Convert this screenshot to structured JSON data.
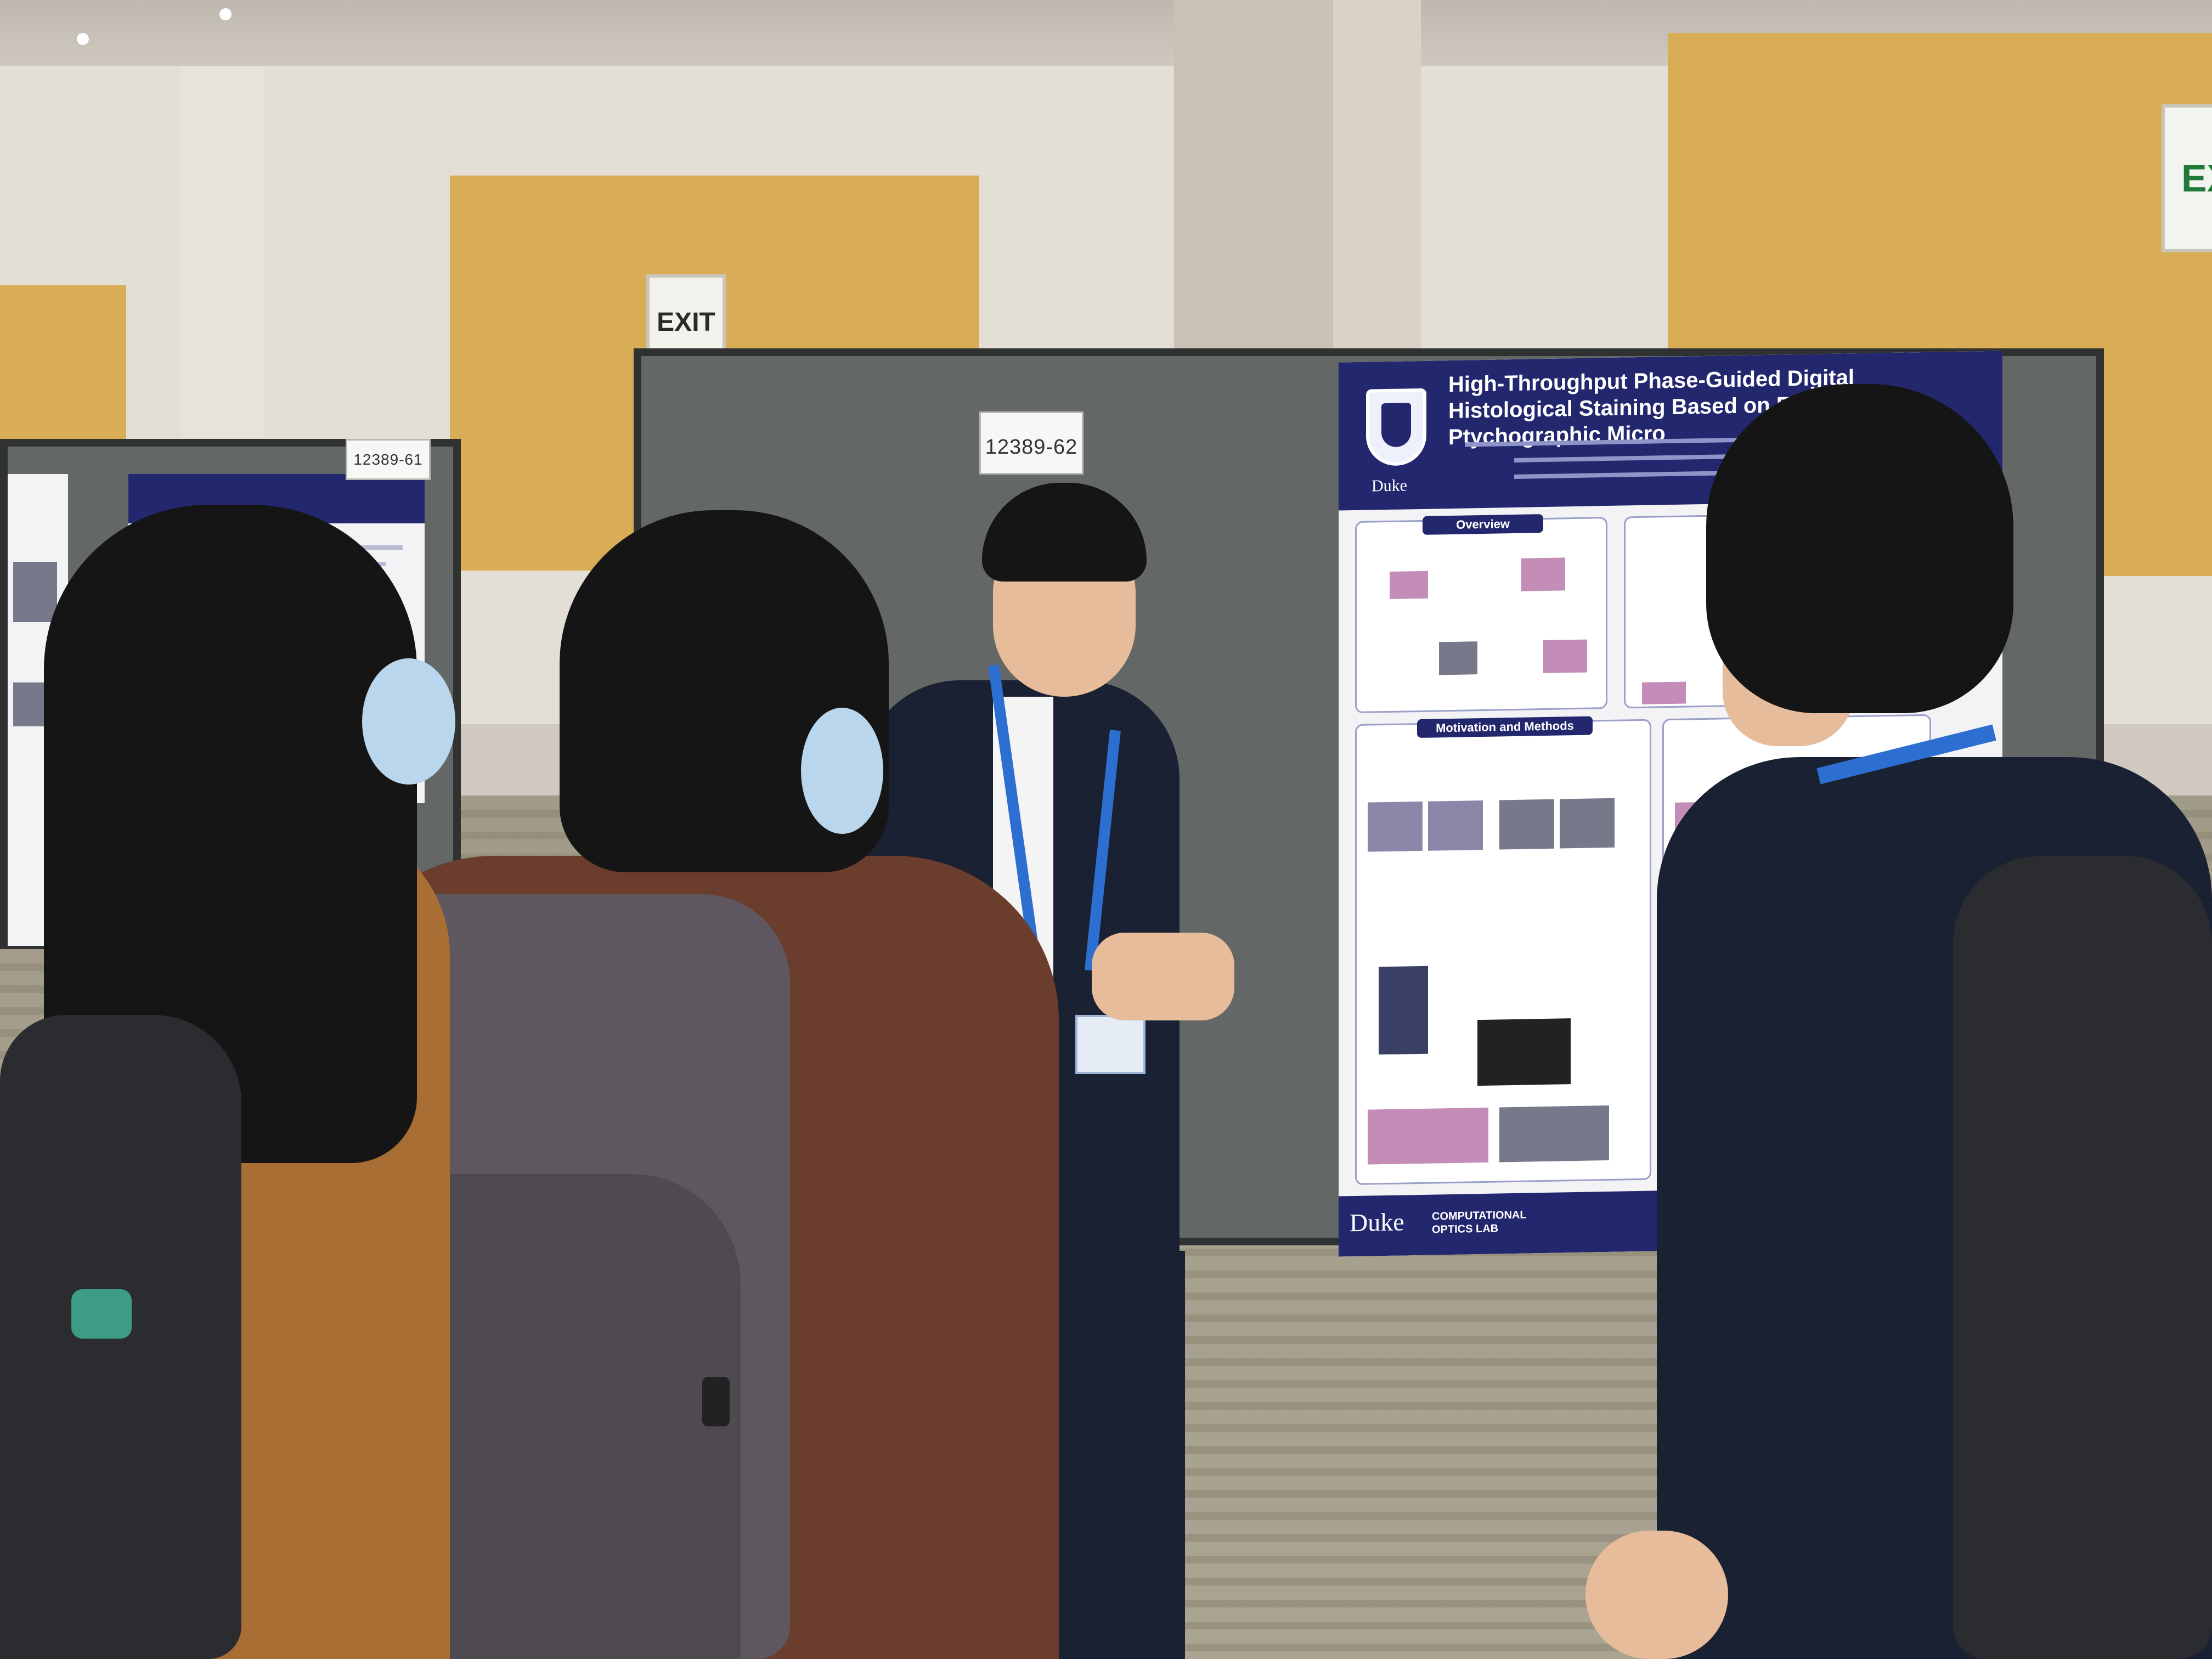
{
  "signs": {
    "exit_center": "EXIT",
    "exit_right_partial": "EX"
  },
  "board_tags": {
    "left": "12389-61",
    "center": "12389-62"
  },
  "poster": {
    "title": "High-Throughput Phase-Guided Digital Histological Staining Based on Fourier Ptychographic Micro",
    "sections": {
      "overview": "Overview",
      "motivation": "Motivation and Methods"
    },
    "logo_text": "Duke",
    "footer_logo": "Duke",
    "footer_lab": "COMPUTATIONAL OPTICS LAB"
  },
  "colors": {
    "poster_navy": "#23286e",
    "wall_wood": "#d8ad56",
    "board_gray": "#636765",
    "lanyard_blue": "#2d6fd0"
  }
}
